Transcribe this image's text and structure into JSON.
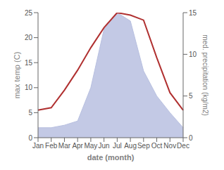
{
  "chart_data": {
    "type": "line",
    "categories": [
      "Jan",
      "Feb",
      "Mar",
      "Apr",
      "May",
      "Jun",
      "Jul",
      "Aug",
      "Sep",
      "Oct",
      "Nov",
      "Dec"
    ],
    "xlabel": "date (month)",
    "ylabel": "max temp (C)",
    "y2label": "med. precipitation (kg/m2)",
    "ylim": [
      0,
      25
    ],
    "yticks": [
      0,
      5,
      10,
      15,
      20,
      25
    ],
    "y2lim": [
      0,
      15
    ],
    "y2ticks": [
      0,
      5,
      10,
      15
    ],
    "grid": false,
    "series": [
      {
        "type": "area",
        "color": "#b8c0e0",
        "axis": "y2",
        "values": [
          1.2,
          1.2,
          1.5,
          2.0,
          6.0,
          13.0,
          15.0,
          14.0,
          8.0,
          5.0,
          3.0,
          1.2
        ]
      },
      {
        "type": "line",
        "color": "#b03030",
        "axis": "y",
        "values": [
          5.5,
          6.0,
          9.5,
          13.5,
          18.0,
          22.0,
          25.0,
          24.5,
          23.5,
          16.0,
          9.0,
          5.5
        ]
      }
    ]
  }
}
